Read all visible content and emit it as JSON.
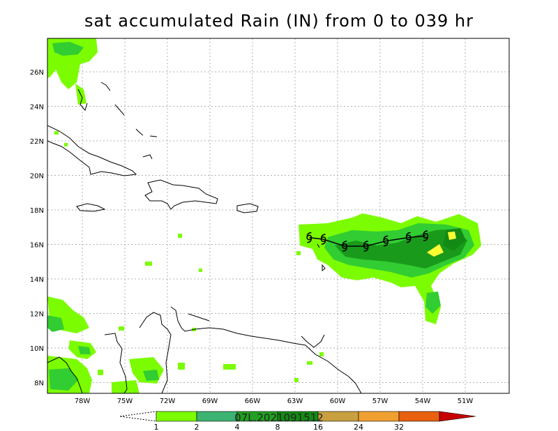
{
  "title": "sat accumulated Rain (IN) from 0 to 039 hr",
  "storm_label": "07L.2021091512",
  "lon_ticks": [
    "78W",
    "75W",
    "72W",
    "69W",
    "66W",
    "63W",
    "60W",
    "57W",
    "54W",
    "51W"
  ],
  "lat_ticks": [
    "26N",
    "24N",
    "22N",
    "20N",
    "18N",
    "16N",
    "14N",
    "12N",
    "10N",
    "8N"
  ],
  "colorbar": {
    "labels": [
      "1",
      "2",
      "4",
      "8",
      "16",
      "24",
      "32"
    ],
    "colors": [
      "#7cfc00",
      "#3cb371",
      "#22a022",
      "#138a13",
      "#c8a040",
      "#f0a030",
      "#e86010",
      "#c80000"
    ]
  },
  "rain_colors": {
    "light": "#7cfc00",
    "medium": "#32cd32",
    "heavy": "#1a9a1a",
    "peak": "#ffff33"
  },
  "track": {
    "symbol": "hurricane-symbol",
    "points": [
      {
        "lon": -62.0,
        "lat": 16.4
      },
      {
        "lon": -61.0,
        "lat": 16.3
      },
      {
        "lon": -59.5,
        "lat": 15.9
      },
      {
        "lon": -58.0,
        "lat": 15.9
      },
      {
        "lon": -56.6,
        "lat": 16.2
      },
      {
        "lon": -55.0,
        "lat": 16.4
      },
      {
        "lon": -53.8,
        "lat": 16.5
      }
    ]
  }
}
